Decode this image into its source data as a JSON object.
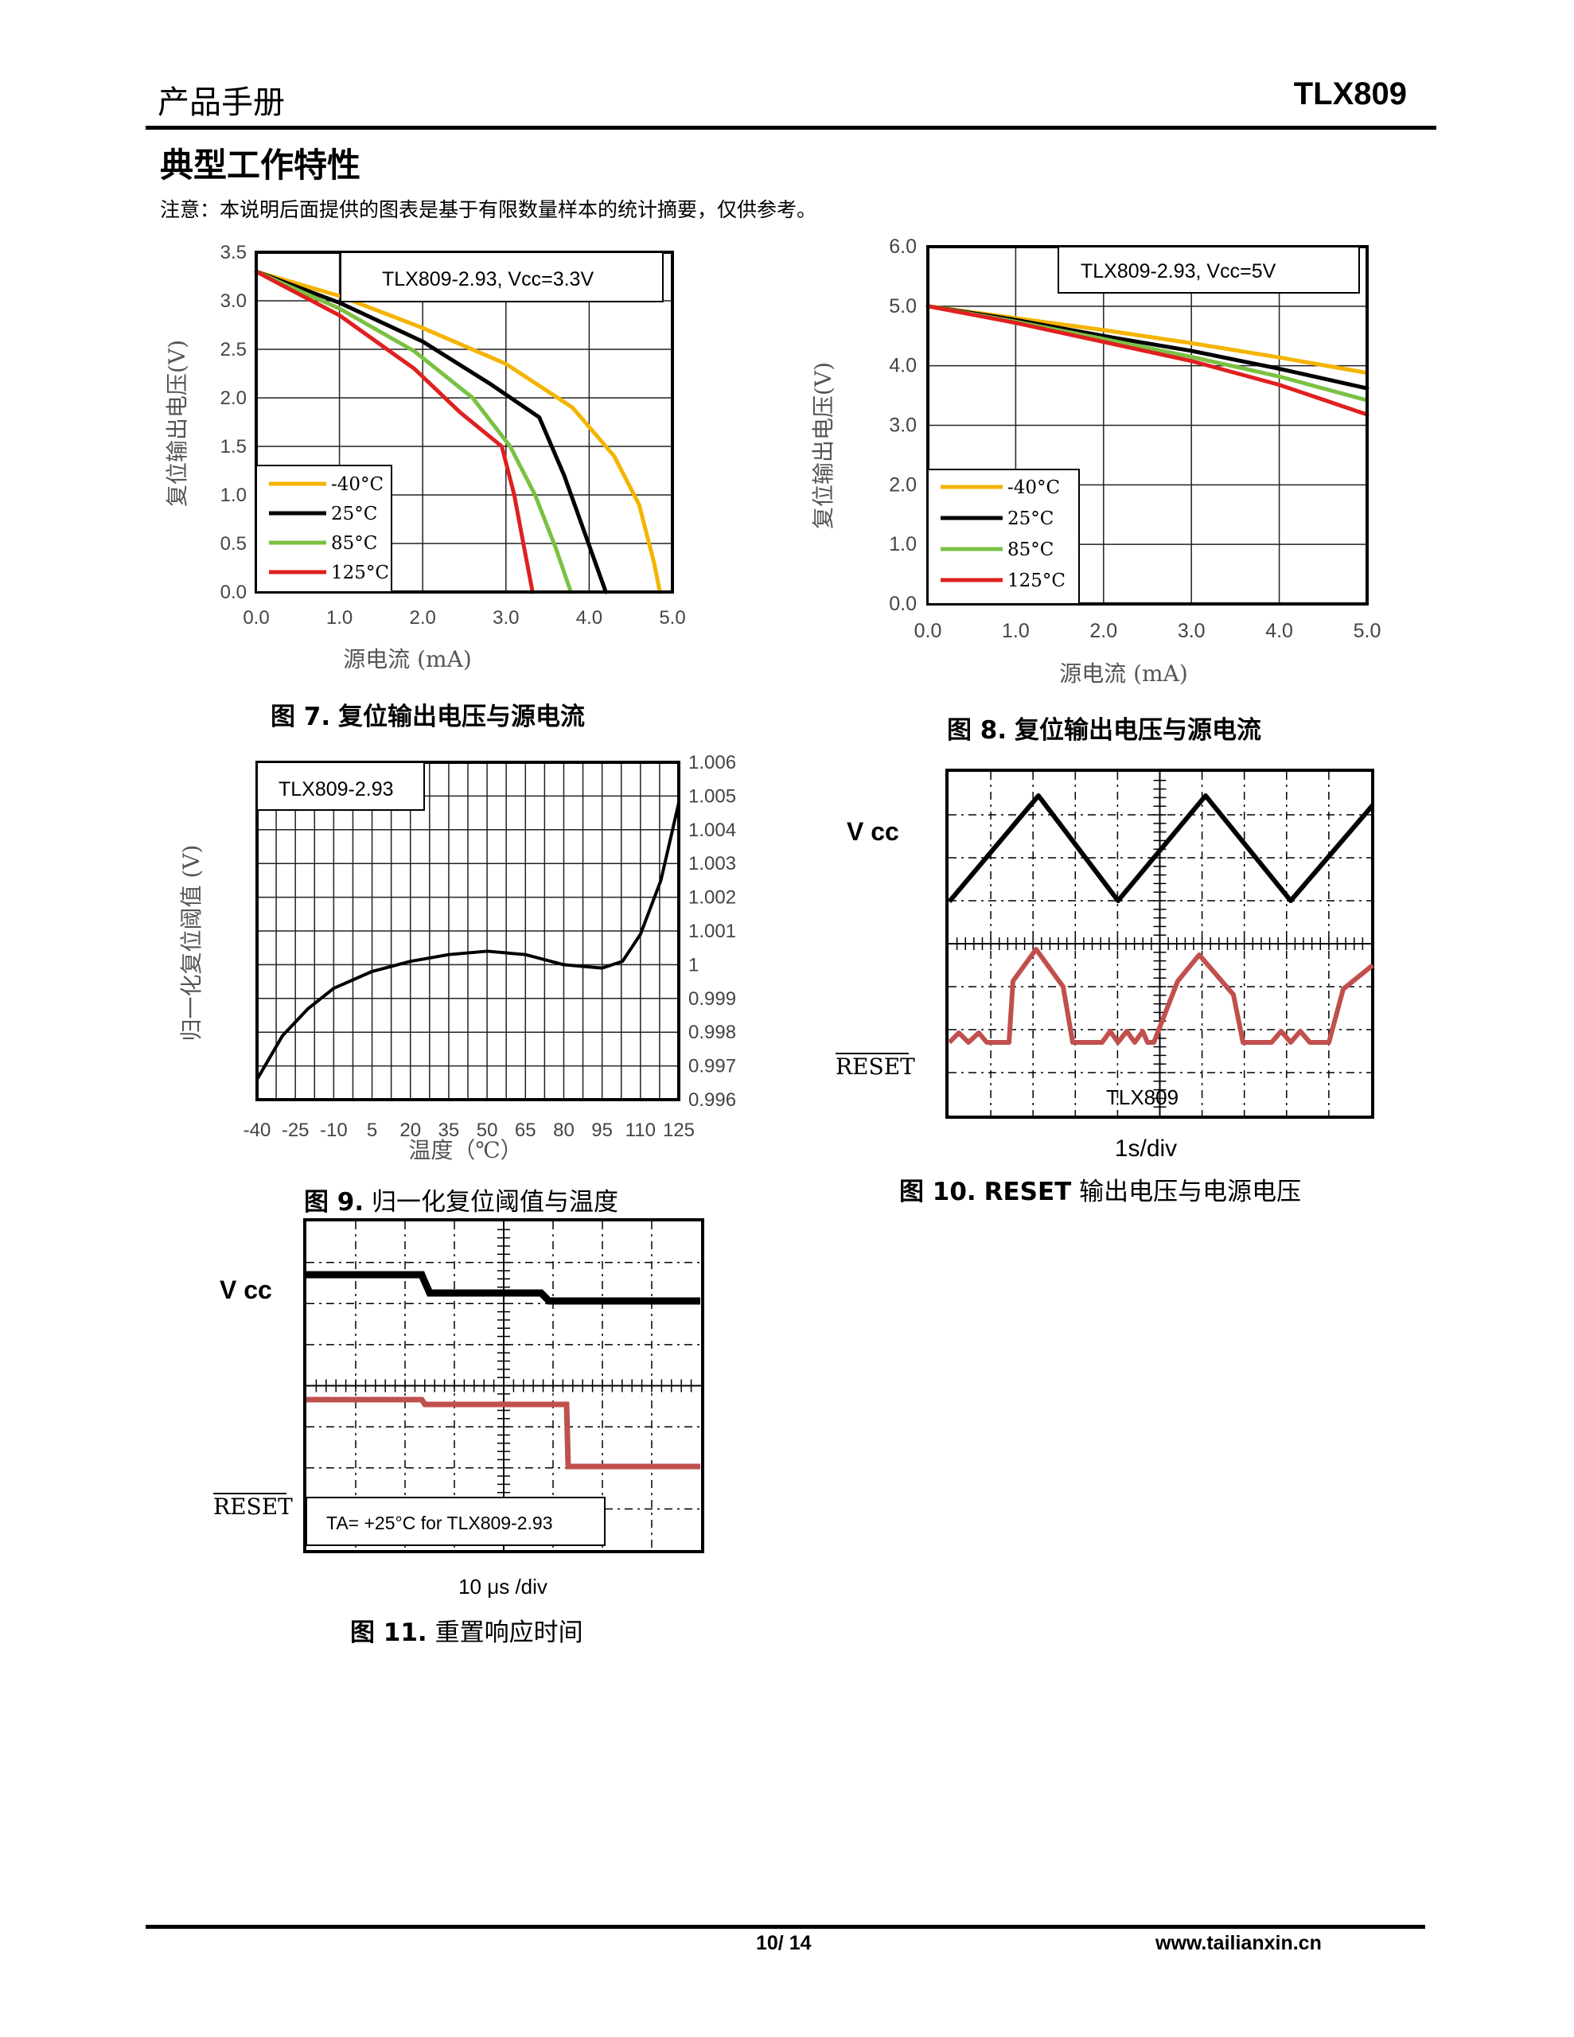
{
  "header": {
    "left": "产品手册",
    "right": "TLX809"
  },
  "section": {
    "title": "典型工作特性",
    "note": "注意：本说明后面提供的图表是基于有限数量样本的统计摘要，仅供参考。"
  },
  "figures": {
    "fig7": {
      "num": "图 7.",
      "title": "复位输出电压与源电流",
      "box_label": "TLX809-2.93, Vcc=3.3V",
      "ylabel": "复位输出电压(V)",
      "xlabel": "源电流 (mA)"
    },
    "fig8": {
      "num": "图 8.",
      "title": "复位输出电压与源电流",
      "box_label": "TLX809-2.93, Vcc=5V",
      "ylabel": "复位输出电压(V)",
      "xlabel": "源电流 (mA)"
    },
    "fig9": {
      "num": "图 9.",
      "title": "归一化复位阈值与温度",
      "box_label": "TLX809-2.93",
      "ylabel": "归一化复位阈值 (V)",
      "xlabel": "温度（℃）"
    },
    "fig10": {
      "num": "图 10.",
      "title_bold": "RESET",
      "title": "输出电压与电源电压",
      "vcc_label": "V cc",
      "reset_label": "RESET",
      "device": "TLX809",
      "timebase": "1s/div"
    },
    "fig11": {
      "num": "图 11.",
      "title": "重置响应时间",
      "vcc_label": "V cc",
      "reset_label": "RESET",
      "note": "TA= +25°C for TLX809-2.93",
      "timebase": "10 μs /div"
    }
  },
  "chart_data": [
    {
      "type": "line",
      "title": "TLX809-2.93, Vcc=3.3V",
      "xlabel": "源电流 (mA)",
      "ylabel": "复位输出电压(V)",
      "xlim": [
        0,
        5
      ],
      "ylim": [
        0,
        3.5
      ],
      "xticks": [
        "0.0",
        "1.0",
        "2.0",
        "3.0",
        "4.0",
        "5.0"
      ],
      "yticks": [
        "0.0",
        "0.5",
        "1.0",
        "1.5",
        "2.0",
        "2.5",
        "3.0",
        "3.5"
      ],
      "grid": true,
      "legend": "bottom-left",
      "series": [
        {
          "name": "-40°C",
          "color": "#f4b400",
          "points": [
            [
              0,
              3.3
            ],
            [
              1,
              3.05
            ],
            [
              2,
              2.72
            ],
            [
              3,
              2.35
            ],
            [
              3.8,
              1.9
            ],
            [
              4.3,
              1.4
            ],
            [
              4.6,
              0.9
            ],
            [
              4.78,
              0.3
            ],
            [
              4.85,
              0
            ]
          ]
        },
        {
          "name": "25°C",
          "color": "#000000",
          "points": [
            [
              0,
              3.3
            ],
            [
              1,
              2.98
            ],
            [
              2,
              2.58
            ],
            [
              2.8,
              2.15
            ],
            [
              3.4,
              1.8
            ],
            [
              3.7,
              1.2
            ],
            [
              3.95,
              0.6
            ],
            [
              4.2,
              0
            ]
          ]
        },
        {
          "name": "85°C",
          "color": "#7ac143",
          "points": [
            [
              0,
              3.3
            ],
            [
              1,
              2.92
            ],
            [
              1.9,
              2.48
            ],
            [
              2.6,
              2.0
            ],
            [
              3.05,
              1.5
            ],
            [
              3.35,
              1.0
            ],
            [
              3.6,
              0.45
            ],
            [
              3.78,
              0
            ]
          ]
        },
        {
          "name": "125°C",
          "color": "#e02020",
          "points": [
            [
              0,
              3.3
            ],
            [
              1,
              2.85
            ],
            [
              1.9,
              2.3
            ],
            [
              2.45,
              1.85
            ],
            [
              2.95,
              1.5
            ],
            [
              3.1,
              1.0
            ],
            [
              3.22,
              0.45
            ],
            [
              3.32,
              0
            ]
          ]
        }
      ]
    },
    {
      "type": "line",
      "title": "TLX809-2.93, Vcc=5V",
      "xlabel": "源电流 (mA)",
      "ylabel": "复位输出电压(V)",
      "xlim": [
        0,
        5
      ],
      "ylim": [
        0,
        6
      ],
      "xticks": [
        "0.0",
        "1.0",
        "2.0",
        "3.0",
        "4.0",
        "5.0"
      ],
      "yticks": [
        "0.0",
        "1.0",
        "2.0",
        "3.0",
        "4.0",
        "5.0",
        "6.0"
      ],
      "grid": true,
      "legend": "bottom-left",
      "series": [
        {
          "name": "-40°C",
          "color": "#f4b400",
          "points": [
            [
              0,
              5.0
            ],
            [
              1,
              4.8
            ],
            [
              2,
              4.6
            ],
            [
              3,
              4.38
            ],
            [
              4,
              4.14
            ],
            [
              5,
              3.88
            ]
          ]
        },
        {
          "name": "25°C",
          "color": "#000000",
          "points": [
            [
              0,
              5.0
            ],
            [
              1,
              4.77
            ],
            [
              2,
              4.5
            ],
            [
              3,
              4.25
            ],
            [
              4,
              3.95
            ],
            [
              5,
              3.62
            ]
          ]
        },
        {
          "name": "85°C",
          "color": "#7ac143",
          "points": [
            [
              0,
              5.0
            ],
            [
              1,
              4.74
            ],
            [
              2,
              4.45
            ],
            [
              3,
              4.15
            ],
            [
              4,
              3.82
            ],
            [
              5,
              3.42
            ]
          ]
        },
        {
          "name": "125°C",
          "color": "#e02020",
          "points": [
            [
              0,
              5.0
            ],
            [
              1,
              4.72
            ],
            [
              2,
              4.4
            ],
            [
              3,
              4.08
            ],
            [
              4,
              3.68
            ],
            [
              5,
              3.18
            ]
          ]
        }
      ]
    },
    {
      "type": "line",
      "title": "TLX809-2.93",
      "xlabel": "温度（℃）",
      "ylabel": "归一化复位阈值 (V)",
      "xlim": [
        -40,
        125
      ],
      "ylim": [
        0.996,
        1.006
      ],
      "xticks": [
        "-40",
        "-25",
        "-10",
        "5",
        "20",
        "35",
        "50",
        "65",
        "80",
        "95",
        "110",
        "125"
      ],
      "yticks": [
        "0.996",
        "0.997",
        "0.998",
        "0.999",
        "1",
        "1.001",
        "1.002",
        "1.003",
        "1.004",
        "1.005",
        "1.006"
      ],
      "grid": true,
      "y_axis_side": "right",
      "series": [
        {
          "color": "#000000",
          "points": [
            [
              -40,
              0.9966
            ],
            [
              -30,
              0.9979
            ],
            [
              -20,
              0.9987
            ],
            [
              -10,
              0.9993
            ],
            [
              5,
              0.9998
            ],
            [
              20,
              1.0001
            ],
            [
              35,
              1.0003
            ],
            [
              50,
              1.0004
            ],
            [
              65,
              1.0003
            ],
            [
              80,
              1.0
            ],
            [
              95,
              0.9999
            ],
            [
              103,
              1.0001
            ],
            [
              110,
              1.0009
            ],
            [
              118,
              1.0025
            ],
            [
              125,
              1.0048
            ]
          ]
        }
      ]
    }
  ]
}
